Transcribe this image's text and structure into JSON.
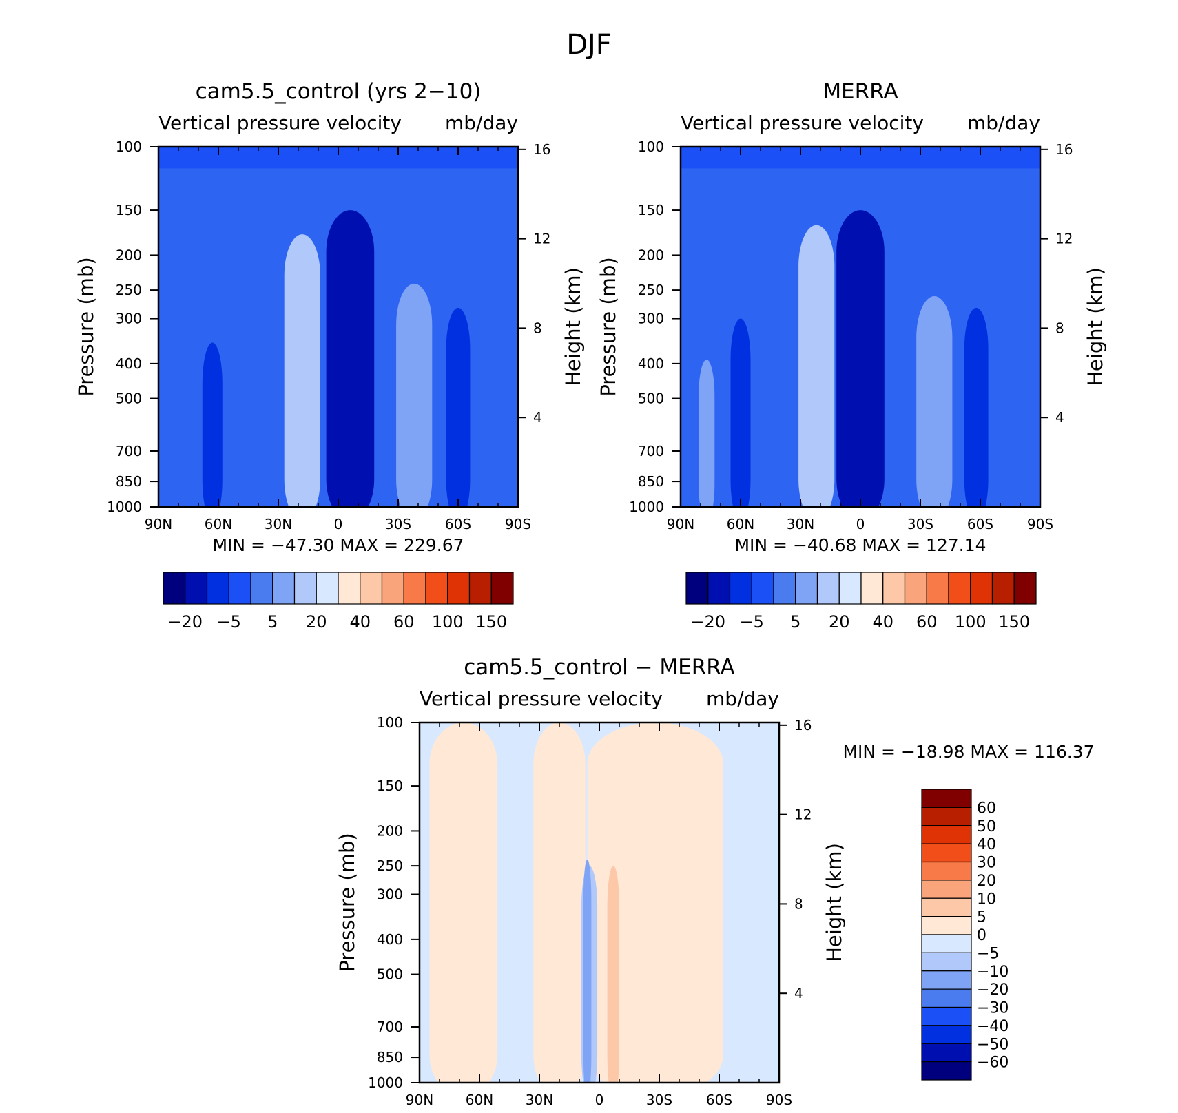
{
  "figure_title": "DJF",
  "chart_data": [
    {
      "type": "heatmap",
      "panel": "top-left",
      "title": "cam5.5_control (yrs 2−10)",
      "subtitle_left": "Vertical pressure velocity",
      "subtitle_right": "mb/day",
      "ylabel": "Pressure (mb)",
      "y2label": "Height (km)",
      "x_ticks": [
        "90N",
        "60N",
        "30N",
        "0",
        "30S",
        "60S",
        "90S"
      ],
      "y_ticks": [
        100,
        150,
        200,
        250,
        300,
        400,
        500,
        700,
        850,
        1000
      ],
      "y2_ticks": [
        16,
        12,
        8,
        4
      ],
      "stats": "MIN = −47.30   MAX = 229.67",
      "min": -47.3,
      "max": 229.67,
      "colorbar_labels": [
        "−20",
        "−5",
        "5",
        "20",
        "40",
        "60",
        "100",
        "150"
      ],
      "colorbar_colors": [
        "#00007f",
        "#0010b0",
        "#0030e0",
        "#1a50f5",
        "#4a7cf0",
        "#80a4f5",
        "#b0c8fa",
        "#d8e8ff",
        "#ffe8d6",
        "#fcc8a8",
        "#faa47c",
        "#f77a48",
        "#f24e1a",
        "#df3306",
        "#b71f00",
        "#800000"
      ],
      "fields": [
        {
          "lat_center": 18,
          "lat_half_width": 5,
          "p_top": 270,
          "value": "#d8e8ff"
        },
        {
          "lat_center": 18,
          "lat_half_width": 9,
          "p_top": 175,
          "value": "#b0c8fa"
        },
        {
          "lat_center": -4,
          "lat_half_width": 3,
          "p_top": 230,
          "value": "#00007f"
        },
        {
          "lat_center": -6,
          "lat_half_width": 12,
          "p_top": 150,
          "value": "#0010b0"
        },
        {
          "lat_center": -36,
          "lat_half_width": 5,
          "p_top": 340,
          "value": "#b0c8fa"
        },
        {
          "lat_center": -38,
          "lat_half_width": 9,
          "p_top": 240,
          "value": "#80a4f5"
        },
        {
          "lat_center": -60,
          "lat_half_width": 6,
          "p_top": 280,
          "value": "#0030e0"
        },
        {
          "lat_center": 63,
          "lat_half_width": 5,
          "p_top": 350,
          "value": "#0030e0"
        }
      ]
    },
    {
      "type": "heatmap",
      "panel": "top-right",
      "title": "MERRA",
      "subtitle_left": "Vertical pressure velocity",
      "subtitle_right": "mb/day",
      "ylabel": "Pressure (mb)",
      "y2label": "Height (km)",
      "x_ticks": [
        "90N",
        "60N",
        "30N",
        "0",
        "30S",
        "60S",
        "90S"
      ],
      "y_ticks": [
        100,
        150,
        200,
        250,
        300,
        400,
        500,
        700,
        850,
        1000
      ],
      "y2_ticks": [
        16,
        12,
        8,
        4
      ],
      "stats": "MIN = −40.68   MAX = 127.14",
      "min": -40.68,
      "max": 127.14,
      "colorbar_labels": [
        "−20",
        "−5",
        "5",
        "20",
        "40",
        "60",
        "100",
        "150"
      ],
      "colorbar_colors": [
        "#00007f",
        "#0010b0",
        "#0030e0",
        "#1a50f5",
        "#4a7cf0",
        "#80a4f5",
        "#b0c8fa",
        "#d8e8ff",
        "#ffe8d6",
        "#fcc8a8",
        "#faa47c",
        "#f77a48",
        "#f24e1a",
        "#df3306",
        "#b71f00",
        "#800000"
      ],
      "fields": [
        {
          "lat_center": 22,
          "lat_half_width": 5,
          "p_top": 280,
          "value": "#d8e8ff"
        },
        {
          "lat_center": 22,
          "lat_half_width": 9,
          "p_top": 165,
          "value": "#b0c8fa"
        },
        {
          "lat_center": 7,
          "lat_half_width": 3,
          "p_top": 620,
          "value": "#00007f"
        },
        {
          "lat_center": 0,
          "lat_half_width": 12,
          "p_top": 150,
          "value": "#0010b0"
        },
        {
          "lat_center": -37,
          "lat_half_width": 5,
          "p_top": 430,
          "value": "#b0c8fa"
        },
        {
          "lat_center": -37,
          "lat_half_width": 9,
          "p_top": 260,
          "value": "#80a4f5"
        },
        {
          "lat_center": -58,
          "lat_half_width": 6,
          "p_top": 280,
          "value": "#0030e0"
        },
        {
          "lat_center": 60,
          "lat_half_width": 5,
          "p_top": 300,
          "value": "#0030e0"
        },
        {
          "lat_center": 77,
          "lat_half_width": 4,
          "p_top": 390,
          "value": "#80a4f5"
        }
      ]
    },
    {
      "type": "heatmap",
      "panel": "bottom",
      "title": "cam5.5_control − MERRA",
      "subtitle_left": "Vertical pressure velocity",
      "subtitle_right": "mb/day",
      "ylabel": "Pressure (mb)",
      "y2label": "Height (km)",
      "x_ticks": [
        "90N",
        "60N",
        "30N",
        "0",
        "30S",
        "60S",
        "90S"
      ],
      "y_ticks": [
        100,
        150,
        200,
        250,
        300,
        400,
        500,
        700,
        850,
        1000
      ],
      "y2_ticks": [
        16,
        12,
        8,
        4
      ],
      "stats": "MIN = −18.98   MAX = 116.37",
      "min": -18.98,
      "max": 116.37,
      "colorbar_labels": [
        "60",
        "50",
        "40",
        "30",
        "20",
        "10",
        "5",
        "0",
        "−5",
        "−10",
        "−20",
        "−30",
        "−40",
        "−50",
        "−60"
      ],
      "colorbar_colors": [
        "#800000",
        "#b71f00",
        "#df3306",
        "#f24e1a",
        "#f77a48",
        "#faa47c",
        "#fcc8a8",
        "#ffe8d6",
        "#d8e8ff",
        "#b0c8fa",
        "#80a4f5",
        "#4a7cf0",
        "#1a50f5",
        "#0030e0",
        "#0010b0",
        "#00007f"
      ],
      "fields": [
        {
          "lat_center": 68,
          "lat_half_width": 17,
          "p_top": 100,
          "value": "#ffe8d6"
        },
        {
          "lat_center": 20,
          "lat_half_width": 13,
          "p_top": 100,
          "value": "#ffe8d6"
        },
        {
          "lat_center": -28,
          "lat_half_width": 34,
          "p_top": 100,
          "value": "#ffe8d6"
        },
        {
          "lat_center": -7,
          "lat_half_width": 3,
          "p_top": 250,
          "value": "#fcc8a8"
        },
        {
          "lat_center": 5,
          "lat_half_width": 4,
          "p_top": 250,
          "value": "#b0c8fa"
        },
        {
          "lat_center": 6,
          "lat_half_width": 2,
          "p_top": 240,
          "value": "#80a4f5"
        }
      ]
    }
  ]
}
